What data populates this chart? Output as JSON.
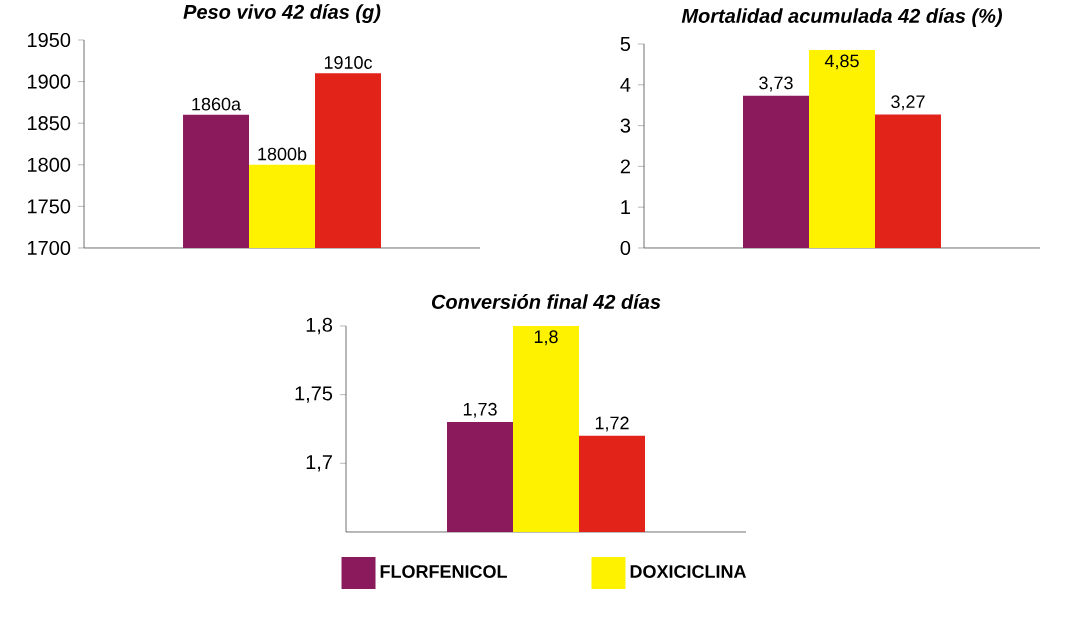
{
  "chart_data": [
    {
      "type": "bar",
      "title": "Peso vivo 42 días (g)",
      "categories": [
        null
      ],
      "series": [
        {
          "color": "#8b1a5c",
          "values": [
            1860
          ],
          "value_labels": [
            "1860a"
          ]
        },
        {
          "color": "#fff200",
          "values": [
            1800
          ],
          "value_labels": [
            "1800b"
          ]
        },
        {
          "color": "#e2231a",
          "values": [
            1910
          ],
          "value_labels": [
            "1910c"
          ]
        }
      ],
      "ylim": [
        1700,
        1950
      ],
      "yticks": [
        1700,
        1750,
        1800,
        1850,
        1900,
        1950
      ]
    },
    {
      "type": "bar",
      "title": "Mortalidad acumulada 42 días (%)",
      "categories": [
        null
      ],
      "series": [
        {
          "color": "#8b1a5c",
          "values": [
            3.73
          ],
          "value_labels": [
            "3,73"
          ]
        },
        {
          "color": "#fff200",
          "values": [
            4.85
          ],
          "value_labels": [
            "4,85"
          ]
        },
        {
          "color": "#e2231a",
          "values": [
            3.27
          ],
          "value_labels": [
            "3,27"
          ]
        }
      ],
      "ylim": [
        0,
        5
      ],
      "yticks": [
        0,
        1,
        2,
        3,
        4,
        5
      ]
    },
    {
      "type": "bar",
      "title": "Conversión final 42 días",
      "categories": [
        null
      ],
      "series": [
        {
          "name": "FLORFENICOL",
          "color": "#8b1a5c",
          "values": [
            1.73
          ],
          "value_labels": [
            "1,73"
          ]
        },
        {
          "name": "DOXICICLINA",
          "color": "#fff200",
          "values": [
            1.8
          ],
          "value_labels": [
            "1,8"
          ]
        },
        {
          "color": "#e2231a",
          "values": [
            1.72
          ],
          "value_labels": [
            "1,72"
          ]
        }
      ],
      "ylim": [
        1.65,
        1.8
      ],
      "yticks": [
        {
          "value": 1.7,
          "label": "1,7"
        },
        {
          "value": 1.75,
          "label": "1,75"
        },
        {
          "value": 1.8,
          "label": "1,8"
        }
      ],
      "legend": "bottom"
    }
  ]
}
